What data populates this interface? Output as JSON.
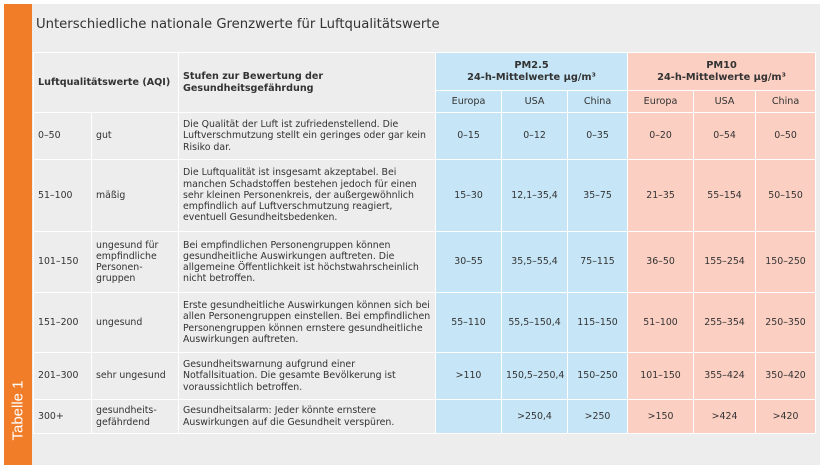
{
  "side_label": "Tabelle 1",
  "title": "Unterschiedliche nationale Grenzwerte für Luftqualitätswerte",
  "headers": {
    "aqi": "Luftqualitätswerte (AQI)",
    "stufen": "Stufen zur Bewertung der Gesundheitsgefährdung",
    "pm25_title": "PM2.5",
    "pm25_sub": "24-h-Mittelwerte µg/m³",
    "pm10_title": "PM10",
    "pm10_sub": "24-h-Mittelwerte µg/m³",
    "regions": [
      "Europa",
      "USA",
      "China",
      "Europa",
      "USA",
      "China"
    ]
  },
  "colors": {
    "accent_orange": "#f27d29",
    "pm25_bg": "#c6e6f7",
    "pm10_bg": "#fbcfc2",
    "table_bg": "#ededed"
  },
  "rows": [
    {
      "range": "0–50",
      "category": "gut",
      "description": "Die Qualität der Luft ist zufriedenstellend. Die Luftverschmutzung stellt ein geringes oder gar kein Risiko dar.",
      "pm25": [
        "0–15",
        "0–12",
        "0–35"
      ],
      "pm10": [
        "0–20",
        "0–54",
        "0–50"
      ]
    },
    {
      "range": "51–100",
      "category": "mäßig",
      "description": "Die Luftqualität ist insgesamt akzeptabel. Bei manchen Schadstoffen bestehen jedoch für einen sehr kleinen Personenkreis, der außergewöhnlich empfindlich auf Luftverschmutzung reagiert, eventuell Gesundheitsbedenken.",
      "pm25": [
        "15–30",
        "12,1–35,4",
        "35–75"
      ],
      "pm10": [
        "21–35",
        "55–154",
        "50–150"
      ]
    },
    {
      "range": "101–150",
      "category": "ungesund für empfindliche Personen­gruppen",
      "description": "Bei empfindlichen Personengruppen können gesundheitliche Auswirkungen auftreten. Die allgemeine Öffentlichkeit ist höchstwahrscheinlich nicht betroffen.",
      "pm25": [
        "30–55",
        "35,5–55,4",
        "75–115"
      ],
      "pm10": [
        "36–50",
        "155–254",
        "150–250"
      ]
    },
    {
      "range": "151–200",
      "category": "ungesund",
      "description": "Erste gesundheitliche Auswirkungen können sich bei allen Personengruppen einstellen. Bei empfindlichen Personengruppen können ernstere gesundheitliche Auswirkungen auftreten.",
      "pm25": [
        "55–110",
        "55,5–150,4",
        "115–150"
      ],
      "pm10": [
        "51–100",
        "255–354",
        "250–350"
      ]
    },
    {
      "range": "201–300",
      "category": "sehr ungesund",
      "description": "Gesundheitswarnung aufgrund einer Notfallsituation. Die gesamte Bevölkerung ist voraussichtlich betroffen.",
      "pm25": [
        ">110",
        "150,5–250,4",
        "150–250"
      ],
      "pm10": [
        "101–150",
        "355–424",
        "350–420"
      ]
    },
    {
      "range": "300+",
      "category": "gesundheits­gefährdend",
      "description": "Gesundheitsalarm: Jeder könnte ernstere Auswirkungen auf die Gesundheit verspüren.",
      "pm25": [
        "",
        ">250,4",
        ">250"
      ],
      "pm10": [
        ">150",
        ">424",
        ">420"
      ]
    }
  ]
}
